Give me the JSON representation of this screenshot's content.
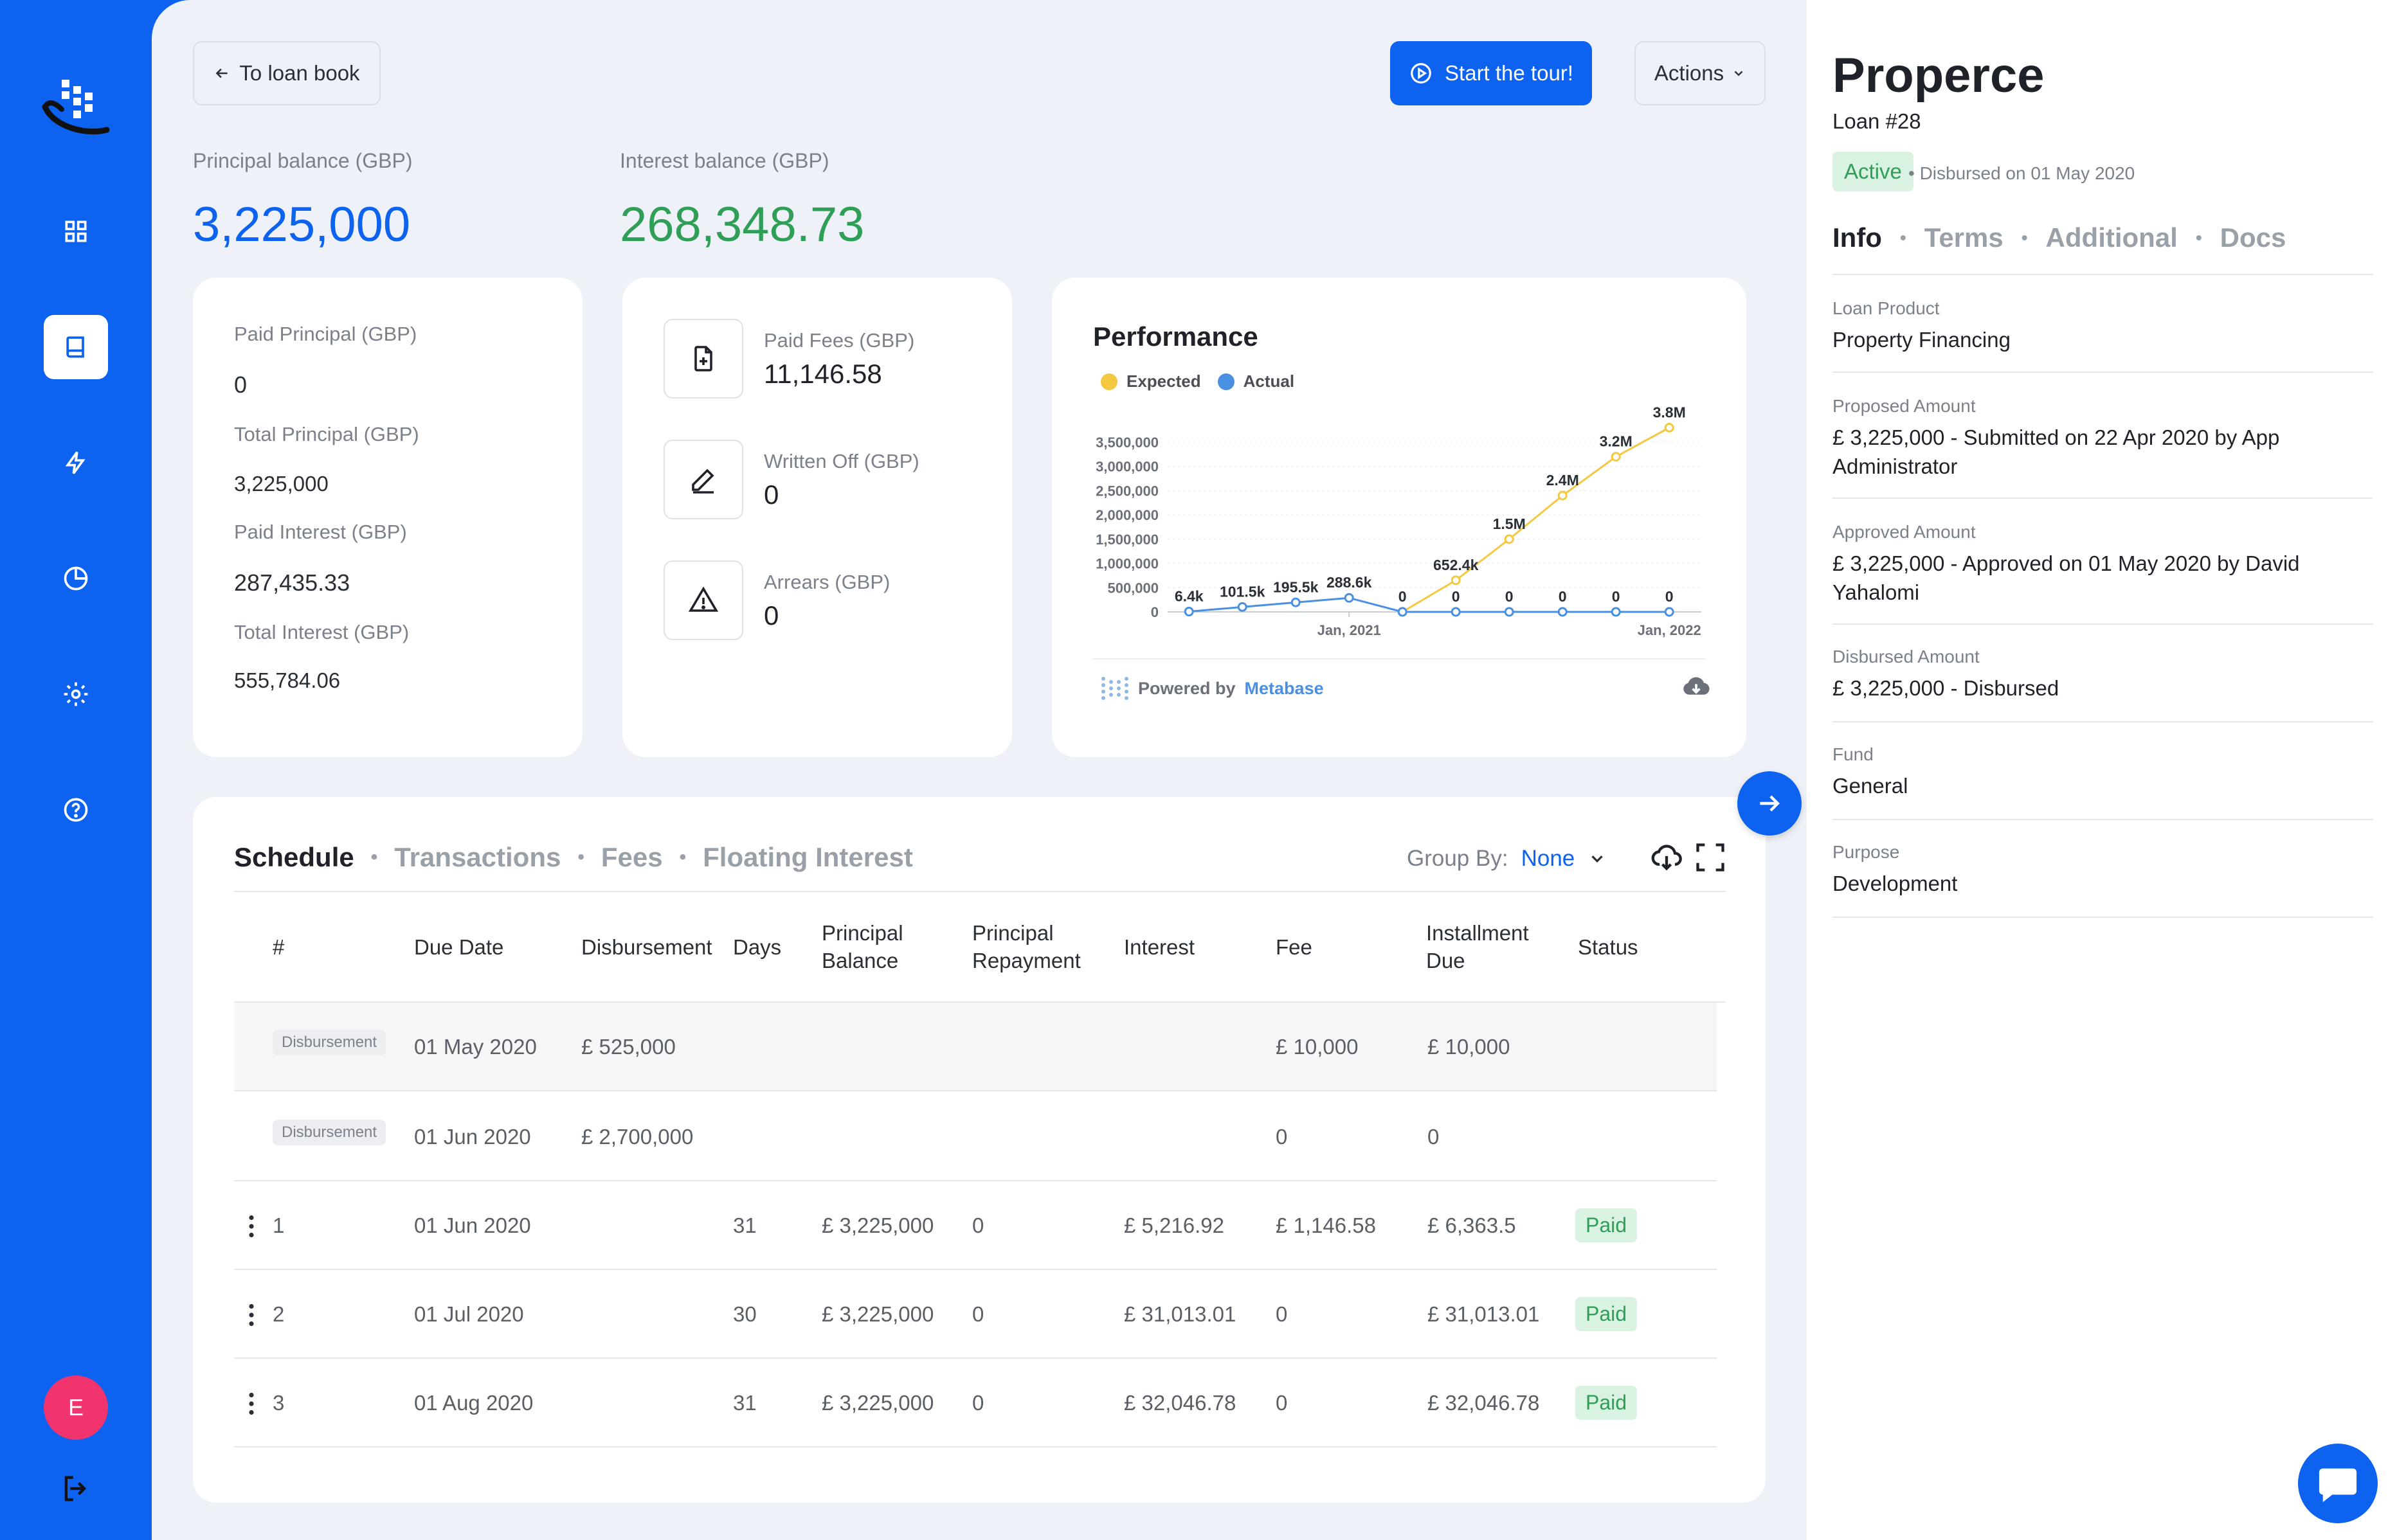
{
  "header": {
    "back_label": "To loan book",
    "tour_label": "Start the tour!",
    "actions_label": "Actions"
  },
  "balances": {
    "principal_label": "Principal balance (GBP)",
    "principal_value": "3,225,000",
    "interest_label": "Interest balance (GBP)",
    "interest_value": "268,348.73"
  },
  "summary": {
    "paid_principal_label": "Paid Principal (GBP)",
    "paid_principal_value": "0",
    "total_principal_label": "Total Principal (GBP)",
    "total_principal_value": "3,225,000",
    "paid_interest_label": "Paid Interest (GBP)",
    "paid_interest_value": "287,435.33",
    "total_interest_label": "Total Interest (GBP)",
    "total_interest_value": "555,784.06"
  },
  "fees": {
    "paid_fees_label": "Paid Fees (GBP)",
    "paid_fees_value": "11,146.58",
    "written_off_label": "Written Off (GBP)",
    "written_off_value": "0",
    "arrears_label": "Arrears (GBP)",
    "arrears_value": "0"
  },
  "performance": {
    "title": "Performance",
    "powered_by": "Powered by",
    "metabase": "Metabase"
  },
  "chart_data": {
    "type": "line",
    "title": "Performance",
    "y_ticks": [
      "0",
      "500,000",
      "1,000,000",
      "1,500,000",
      "2,000,000",
      "2,500,000",
      "3,000,000",
      "3,500,000"
    ],
    "x_ticks": [
      "Jan, 2021",
      "Jan, 2022"
    ],
    "ylim": [
      0,
      3500000
    ],
    "legend_position": "top-left",
    "grid": true,
    "series": [
      {
        "name": "Expected",
        "color": "#f5c842",
        "points": [
          {
            "x": "2021-03",
            "y": 0,
            "label": "0"
          },
          {
            "x": "2021-05",
            "y": 652400,
            "label": "652.4k"
          },
          {
            "x": "2021-07",
            "y": 1500000,
            "label": "1.5M"
          },
          {
            "x": "2021-09",
            "y": 2400000,
            "label": "2.4M"
          },
          {
            "x": "2021-11",
            "y": 3200000,
            "label": "3.2M"
          },
          {
            "x": "2022-01",
            "y": 3800000,
            "label": "3.8M"
          }
        ]
      },
      {
        "name": "Actual",
        "color": "#4a90e2",
        "points": [
          {
            "x": "2020-07",
            "y": 6400,
            "label": "6.4k"
          },
          {
            "x": "2020-09",
            "y": 101500,
            "label": "101.5k"
          },
          {
            "x": "2020-11",
            "y": 195500,
            "label": "195.5k"
          },
          {
            "x": "2021-01",
            "y": 288600,
            "label": "288.6k"
          },
          {
            "x": "2021-03",
            "y": 0,
            "label": "0"
          },
          {
            "x": "2021-05",
            "y": 0,
            "label": "0"
          },
          {
            "x": "2021-07",
            "y": 0,
            "label": "0"
          },
          {
            "x": "2021-09",
            "y": 0,
            "label": "0"
          },
          {
            "x": "2021-11",
            "y": 0,
            "label": "0"
          },
          {
            "x": "2022-01",
            "y": 0,
            "label": "0"
          }
        ]
      }
    ]
  },
  "schedule": {
    "tabs": [
      "Schedule",
      "Transactions",
      "Fees",
      "Floating Interest"
    ],
    "group_by_label": "Group By:",
    "group_by_value": "None",
    "columns": {
      "num": "#",
      "due_date": "Due Date",
      "disbursement": "Disbursement",
      "days": "Days",
      "principal_balance_1": "Principal",
      "principal_balance_2": "Balance",
      "principal_repayment_1": "Principal",
      "principal_repayment_2": "Repayment",
      "interest": "Interest",
      "fee": "Fee",
      "installment_due_1": "Installment",
      "installment_due_2": "Due",
      "status": "Status"
    },
    "rows": [
      {
        "num": "Disbursement",
        "due_date": "01 May 2020",
        "disbursement": "£ 525,000",
        "days": "",
        "principal_balance": "",
        "principal_repayment": "",
        "interest": "",
        "fee": "£ 10,000",
        "installment_due": "£ 10,000",
        "status": ""
      },
      {
        "num": "Disbursement",
        "due_date": "01 Jun 2020",
        "disbursement": "£ 2,700,000",
        "days": "",
        "principal_balance": "",
        "principal_repayment": "",
        "interest": "",
        "fee": "0",
        "installment_due": "0",
        "status": ""
      },
      {
        "num": "1",
        "due_date": "01 Jun 2020",
        "disbursement": "",
        "days": "31",
        "principal_balance": "£ 3,225,000",
        "principal_repayment": "0",
        "interest": "£ 5,216.92",
        "fee": "£ 1,146.58",
        "installment_due": "£ 6,363.5",
        "status": "Paid"
      },
      {
        "num": "2",
        "due_date": "01 Jul 2020",
        "disbursement": "",
        "days": "30",
        "principal_balance": "£ 3,225,000",
        "principal_repayment": "0",
        "interest": "£ 31,013.01",
        "fee": "0",
        "installment_due": "£ 31,013.01",
        "status": "Paid"
      },
      {
        "num": "3",
        "due_date": "01 Aug 2020",
        "disbursement": "",
        "days": "31",
        "principal_balance": "£ 3,225,000",
        "principal_repayment": "0",
        "interest": "£ 32,046.78",
        "fee": "0",
        "installment_due": "£ 32,046.78",
        "status": "Paid"
      }
    ]
  },
  "panel": {
    "title": "Properce",
    "loan_number": "Loan #28",
    "status": "Active",
    "disbursed_note": "• Disbursed on 01 May 2020",
    "tabs": [
      "Info",
      "Terms",
      "Additional",
      "Docs"
    ],
    "fields": [
      {
        "label": "Loan Product",
        "value": "Property Financing"
      },
      {
        "label": "Proposed Amount",
        "value": "£ 3,225,000 - Submitted on 22 Apr 2020 by App Administrator"
      },
      {
        "label": "Approved Amount",
        "value": "£ 3,225,000 - Approved on 01 May 2020 by David Yahalomi"
      },
      {
        "label": "Disbursed Amount",
        "value": "£ 3,225,000 - Disbursed"
      },
      {
        "label": "Fund",
        "value": "General"
      },
      {
        "label": "Purpose",
        "value": "Development"
      }
    ]
  },
  "user": {
    "initial": "E"
  },
  "colors": {
    "brand": "#0d62f0",
    "interest": "#2f9e57",
    "principal": "#0d62f0"
  }
}
